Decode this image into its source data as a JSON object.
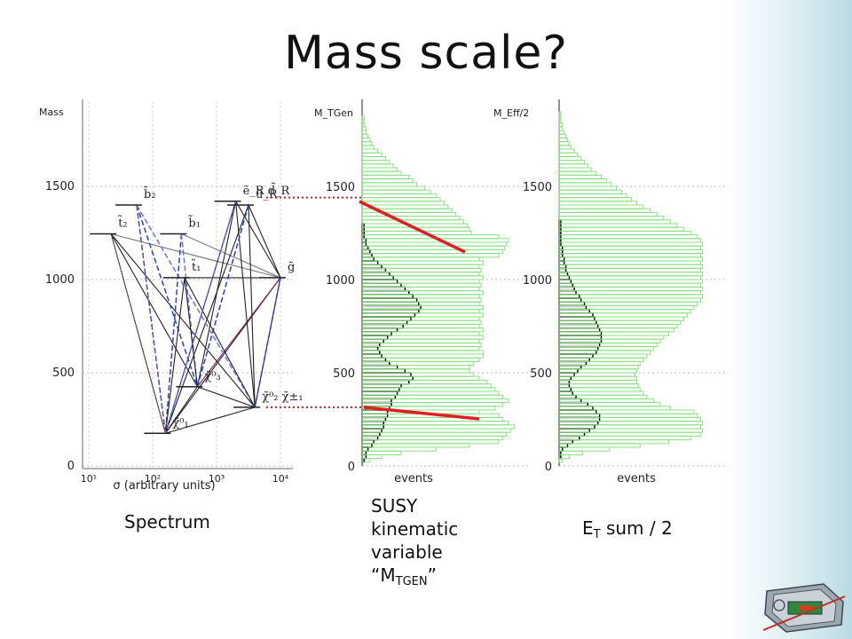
{
  "slide": {
    "title": "Mass scale?",
    "captions": {
      "spectrum": "Spectrum",
      "susy_lines": [
        "SUSY",
        "kinematic",
        "variable"
      ],
      "mtgen_open": "“M",
      "mtgen_sub": "TGEN",
      "mtgen_close": "”",
      "et_main": "E",
      "et_sub": "T",
      "et_rest": " sum / 2"
    },
    "icons": [
      "detector-icon"
    ]
  },
  "chart_data": [
    {
      "type": "scatter",
      "subtype": "mass-spectrum",
      "ylabel": "Mass",
      "xlabel": "σ (arbitrary units)",
      "ylim": [
        0,
        1950
      ],
      "yticks": [
        "0",
        "500",
        "1000",
        "1500"
      ],
      "xticks": [
        "10¹",
        "10²",
        "10³",
        "10⁴"
      ],
      "xscale": "log",
      "grid": true,
      "levels": [
        {
          "label": "b̃₂",
          "mass": 1400,
          "log_sigma": 1.75
        },
        {
          "label": "b̃₁",
          "mass": 1245,
          "log_sigma": 2.45
        },
        {
          "label": "t̃₂",
          "mass": 1245,
          "log_sigma": 1.35
        },
        {
          "label": "ẽ_R d̃_R",
          "mass": 1420,
          "log_sigma": 3.3
        },
        {
          "label": "ũ_R",
          "mass": 1400,
          "log_sigma": 3.5
        },
        {
          "label": "t̃₁",
          "mass": 1010,
          "log_sigma": 2.5
        },
        {
          "label": "g̃",
          "mass": 1010,
          "log_sigma": 4.0
        },
        {
          "label": "χ̃⁰₃",
          "mass": 425,
          "log_sigma": 2.7
        },
        {
          "label": "χ̃⁰₂ χ̃±₁",
          "mass": 315,
          "log_sigma": 3.6
        },
        {
          "label": "χ̃⁰₁",
          "mass": 175,
          "log_sigma": 2.2
        }
      ]
    },
    {
      "type": "bar",
      "orientation": "horizontal",
      "ylabel": "M_TGen",
      "xlabel": "events",
      "ylim": [
        0,
        1950
      ],
      "yticks": [
        "0",
        "500",
        "1000",
        "1500"
      ],
      "bin_width": 20,
      "series": [
        {
          "color": "#000000",
          "values": [
            0,
            1,
            2,
            2,
            3,
            5,
            6,
            8,
            9,
            10,
            11,
            11,
            12,
            13,
            13,
            14,
            15,
            15,
            17,
            18,
            19,
            20,
            24,
            26,
            25,
            22,
            18,
            14,
            12,
            10,
            9,
            8,
            9,
            11,
            13,
            15,
            18,
            21,
            23,
            25,
            27,
            29,
            30,
            29,
            28,
            26,
            24,
            22,
            20,
            18,
            16,
            14,
            12,
            10,
            8,
            6,
            5,
            4,
            3,
            2,
            2,
            1,
            1,
            1,
            1,
            0,
            0,
            0,
            0,
            0,
            0,
            0,
            0,
            0,
            0,
            0,
            0,
            0,
            0,
            0,
            0,
            0,
            0,
            0,
            0,
            0,
            0,
            0,
            0,
            0,
            0,
            0,
            0,
            0,
            0,
            0,
            0,
            0
          ]
        },
        {
          "color": "#88e080",
          "values": [
            0,
            4,
            10,
            20,
            38,
            55,
            70,
            72,
            74,
            76,
            78,
            75,
            72,
            70,
            60,
            68,
            72,
            75,
            72,
            70,
            68,
            66,
            64,
            60,
            57,
            55,
            55,
            57,
            60,
            62,
            62,
            60,
            61,
            60,
            62,
            60,
            62,
            60,
            61,
            60,
            62,
            60,
            62,
            60,
            61,
            60,
            62,
            60,
            61,
            60,
            62,
            60,
            61,
            60,
            62,
            60,
            70,
            72,
            73,
            74,
            75,
            70,
            56,
            55,
            54,
            52,
            50,
            48,
            46,
            44,
            42,
            40,
            38,
            35,
            32,
            28,
            26,
            24,
            20,
            18,
            16,
            14,
            12,
            10,
            8,
            6,
            5,
            4,
            3,
            2,
            2,
            1,
            1,
            1,
            0,
            0,
            0,
            0
          ]
        }
      ],
      "markers": [
        1440,
        315
      ]
    },
    {
      "type": "bar",
      "orientation": "horizontal",
      "ylabel": "M_Eff/2",
      "xlabel": "events",
      "ylim": [
        0,
        1950
      ],
      "yticks": [
        "0",
        "500",
        "1000",
        "1500"
      ],
      "bin_width": 20,
      "series": [
        {
          "color": "#000000",
          "values": [
            0,
            0,
            1,
            1,
            2,
            5,
            8,
            12,
            15,
            18,
            21,
            23,
            24,
            24,
            22,
            20,
            17,
            13,
            10,
            8,
            7,
            6,
            6,
            7,
            9,
            11,
            13,
            16,
            18,
            20,
            22,
            23,
            24,
            25,
            25,
            25,
            24,
            23,
            22,
            21,
            20,
            18,
            16,
            15,
            13,
            12,
            10,
            9,
            8,
            7,
            6,
            5,
            4,
            4,
            3,
            3,
            2,
            2,
            2,
            1,
            1,
            1,
            1,
            1,
            1,
            1,
            0,
            0,
            0,
            0,
            0,
            0,
            0,
            0,
            0,
            0,
            0,
            0,
            0,
            0,
            0,
            0,
            0,
            0,
            0,
            0,
            0,
            0,
            0,
            0,
            0,
            0,
            0,
            0,
            0,
            0,
            0,
            0
          ]
        },
        {
          "color": "#88e080",
          "values": [
            0,
            2,
            6,
            14,
            30,
            48,
            65,
            78,
            84,
            85,
            84,
            85,
            84,
            82,
            80,
            66,
            60,
            56,
            52,
            50,
            48,
            47,
            46,
            46,
            45,
            46,
            47,
            48,
            50,
            52,
            54,
            56,
            58,
            60,
            62,
            65,
            68,
            70,
            72,
            74,
            76,
            78,
            80,
            82,
            84,
            85,
            84,
            85,
            84,
            85,
            84,
            85,
            84,
            85,
            84,
            85,
            84,
            85,
            84,
            85,
            84,
            82,
            78,
            74,
            70,
            66,
            62,
            58,
            54,
            50,
            46,
            43,
            40,
            37,
            34,
            31,
            28,
            25,
            22,
            19,
            17,
            15,
            13,
            11,
            9,
            7,
            6,
            5,
            4,
            3,
            2,
            2,
            1,
            1,
            1,
            0,
            0,
            0
          ]
        }
      ]
    }
  ]
}
